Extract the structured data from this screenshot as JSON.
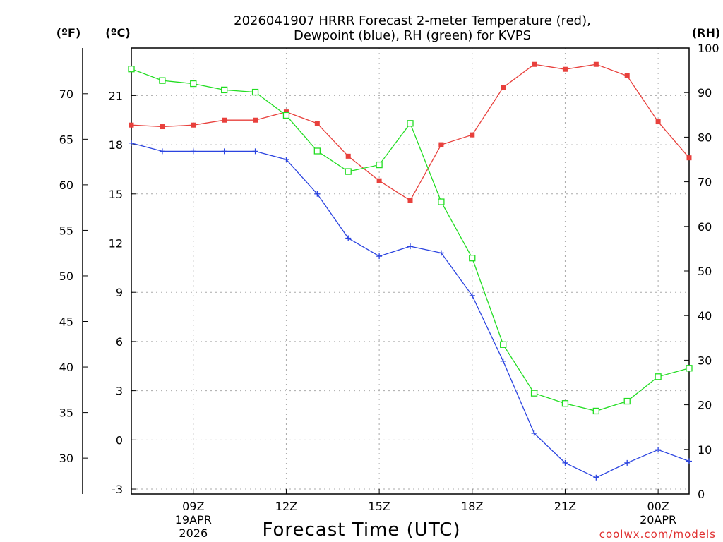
{
  "chart_data": {
    "type": "line",
    "title_line1": "2026041907 HRRR Forecast 2-meter Temperature (red),",
    "title_line2": "Dewpoint (blue), RH (green) for KVPS",
    "xlabel": "Forecast Time (UTC)",
    "credit": "coolwx.com/models",
    "units": {
      "fahrenheit": "(ºF)",
      "celsius": "(ºC)",
      "rh": "(RH)"
    },
    "x_range_hours_utc": [
      7,
      25
    ],
    "x_ticks": [
      {
        "hour": 9,
        "label": "09Z",
        "sub1": "19APR",
        "sub2": "2026"
      },
      {
        "hour": 12,
        "label": "12Z",
        "sub1": "",
        "sub2": ""
      },
      {
        "hour": 15,
        "label": "15Z",
        "sub1": "",
        "sub2": ""
      },
      {
        "hour": 18,
        "label": "18Z",
        "sub1": "",
        "sub2": ""
      },
      {
        "hour": 21,
        "label": "21Z",
        "sub1": "",
        "sub2": ""
      },
      {
        "hour": 24,
        "label": "00Z",
        "sub1": "20APR",
        "sub2": ""
      }
    ],
    "celsius_axis": {
      "range": [
        -3.3,
        23.9
      ],
      "ticks": [
        "-3",
        "0",
        "3",
        "6",
        "9",
        "12",
        "15",
        "18",
        "21"
      ]
    },
    "fahrenheit_axis": {
      "ticks": [
        "30",
        "35",
        "40",
        "45",
        "50",
        "55",
        "60",
        "65",
        "70"
      ]
    },
    "rh_axis": {
      "range": [
        0,
        100
      ],
      "ticks": [
        "0",
        "10",
        "20",
        "30",
        "40",
        "50",
        "60",
        "70",
        "80",
        "90",
        "100"
      ]
    },
    "x": [
      7,
      8,
      9,
      10,
      11,
      12,
      13,
      14,
      15,
      16,
      17,
      18,
      19,
      20,
      21,
      22,
      23,
      24,
      25
    ],
    "series": [
      {
        "name": "Temperature",
        "units": "C",
        "color": "#e8403c",
        "marker": "filled-square",
        "values": [
          19.2,
          19.1,
          19.2,
          19.5,
          19.5,
          20.0,
          19.3,
          17.3,
          15.8,
          14.6,
          18.0,
          18.6,
          21.5,
          22.9,
          22.6,
          22.9,
          22.2,
          19.4,
          17.2
        ]
      },
      {
        "name": "Dewpoint",
        "units": "C",
        "color": "#2b44e0",
        "marker": "plus",
        "values": [
          18.1,
          17.6,
          17.6,
          17.6,
          17.6,
          17.1,
          15.0,
          12.3,
          11.2,
          11.8,
          11.4,
          8.8,
          4.8,
          0.4,
          -1.4,
          -2.3,
          -1.4,
          -0.6,
          -1.3
        ]
      },
      {
        "name": "RH",
        "units": "%",
        "color": "#22dd22",
        "marker": "open-square",
        "values": [
          95.3,
          92.7,
          92.0,
          90.6,
          90.1,
          84.9,
          76.9,
          72.3,
          73.8,
          83.1,
          65.5,
          52.9,
          33.5,
          22.6,
          20.3,
          18.6,
          20.8,
          26.3,
          28.2
        ]
      }
    ]
  }
}
